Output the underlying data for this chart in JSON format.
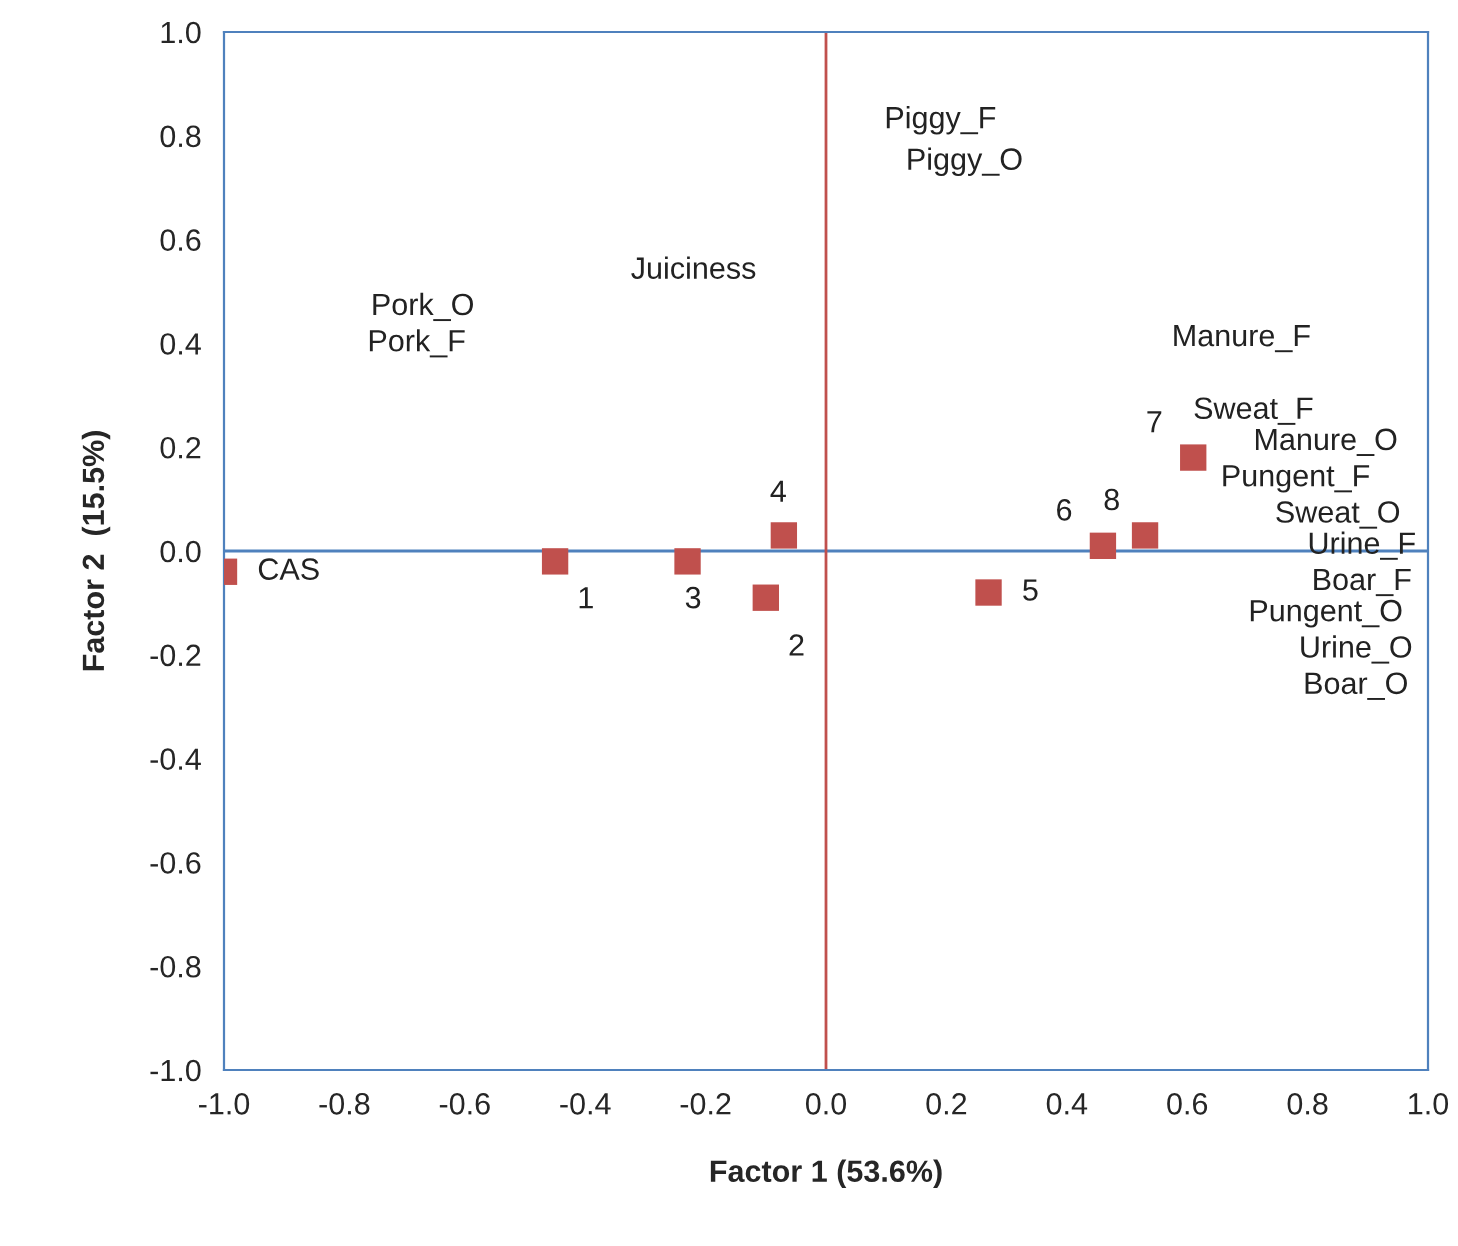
{
  "chart_data": {
    "type": "scatter",
    "xlabel": "Factor 1 (53.6%)",
    "ylabel": "Factor 2  (15.5%)",
    "series": [
      {
        "color": "#c0504d",
        "x": [
          -1.0,
          -0.45,
          -0.1,
          -0.23,
          0.27,
          0.46,
          0.61,
          0.53,
          -0.07
        ],
        "values": [
          -0.04,
          -0.02,
          -0.09,
          -0.02,
          -0.08,
          0.01,
          0.18,
          0.03,
          0.03
        ]
      }
    ],
    "marker": "square",
    "xlim": [
      -1.0,
      1.0
    ],
    "ylim": [
      -1.0,
      1.0
    ],
    "xticks": [
      {
        "value": -1.0,
        "label": "-1.0"
      },
      {
        "value": -0.8,
        "label": "-0.8"
      },
      {
        "value": -0.6,
        "label": "-0.6"
      },
      {
        "value": -0.4,
        "label": "-0.4"
      },
      {
        "value": -0.2,
        "label": "-0.2"
      },
      {
        "value": 0.0,
        "label": "0.0"
      },
      {
        "value": 0.2,
        "label": "0.2"
      },
      {
        "value": 0.4,
        "label": "0.4"
      },
      {
        "value": 0.6,
        "label": "0.6"
      },
      {
        "value": 0.8,
        "label": "0.8"
      },
      {
        "value": 1.0,
        "label": "1.0"
      }
    ],
    "yticks": [
      {
        "value": -1.0,
        "label": "-1.0"
      },
      {
        "value": -0.8,
        "label": "-0.8"
      },
      {
        "value": -0.6,
        "label": "-0.6"
      },
      {
        "value": -0.4,
        "label": "-0.4"
      },
      {
        "value": -0.2,
        "label": "-0.2"
      },
      {
        "value": 0.0,
        "label": "0.0"
      },
      {
        "value": 0.2,
        "label": "0.2"
      },
      {
        "value": 0.4,
        "label": "0.4"
      },
      {
        "value": 0.6,
        "label": "0.6"
      },
      {
        "value": 0.8,
        "label": "0.8"
      },
      {
        "value": 1.0,
        "label": "1.0"
      }
    ],
    "ref_lines": [
      {
        "axis": "y",
        "value": 0,
        "color": "#4f81bd"
      },
      {
        "axis": "x",
        "value": 0,
        "color": "#c0504d"
      }
    ],
    "grid": false,
    "annotations": [
      {
        "text": "CAS",
        "x": -1.0,
        "y": -0.04
      },
      {
        "text": "1",
        "x": -0.45,
        "y": -0.02
      },
      {
        "text": "2",
        "x": -0.1,
        "y": -0.09
      },
      {
        "text": "3",
        "x": -0.23,
        "y": -0.02
      },
      {
        "text": "5",
        "x": 0.27,
        "y": -0.08
      },
      {
        "text": "6",
        "x": 0.46,
        "y": 0.01
      },
      {
        "text": "7",
        "x": 0.61,
        "y": 0.18
      },
      {
        "text": "8",
        "x": 0.53,
        "y": 0.03
      },
      {
        "text": "4",
        "x": -0.07,
        "y": 0.03
      },
      "Piggy_F",
      "Piggy_O",
      "Juiciness",
      "Pork_O",
      "Pork_F",
      "Manure_F",
      "Sweat_F",
      "Manure_O",
      "Pungent_F",
      "Sweat_O",
      "Urine_F",
      "Boar_F",
      "Pungent_O",
      "Urine_O",
      "Boar_O"
    ]
  }
}
